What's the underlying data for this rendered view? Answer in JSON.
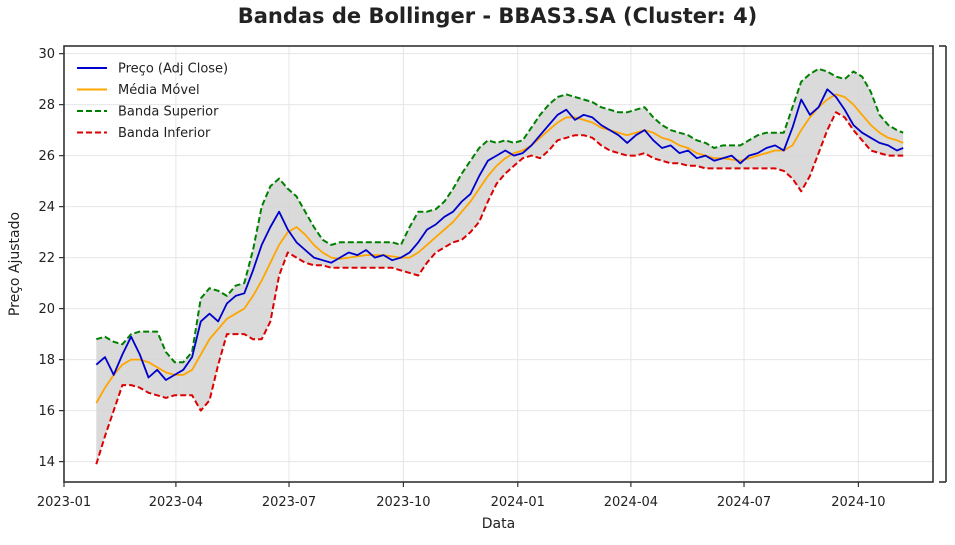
{
  "chart_data": {
    "type": "line",
    "title": "Bandas de Bollinger - BBAS3.SA (Cluster: 4)",
    "xlabel": "Data",
    "ylabel": "Preço Ajustado",
    "x_ticks": [
      "2023-01",
      "2023-04",
      "2023-07",
      "2023-10",
      "2024-01",
      "2024-04",
      "2024-07",
      "2024-10"
    ],
    "y_ticks": [
      14,
      16,
      18,
      20,
      22,
      24,
      26,
      28,
      30
    ],
    "xlim": [
      "2023-01-01",
      "2024-11-30"
    ],
    "ylim": [
      13.2,
      30.3
    ],
    "grid": true,
    "legend_position": "top-left",
    "fill_between": {
      "from": "Banda Inferior",
      "to": "Banda Superior",
      "color": "#d3d3d3"
    },
    "series": [
      {
        "name": "Preço (Adj Close)",
        "color": "#0000cc",
        "style": "solid",
        "x": [
          "2023-01-27",
          "2023-02-03",
          "2023-02-10",
          "2023-02-17",
          "2023-02-24",
          "2023-03-03",
          "2023-03-10",
          "2023-03-17",
          "2023-03-24",
          "2023-03-31",
          "2023-04-07",
          "2023-04-14",
          "2023-04-21",
          "2023-04-28",
          "2023-05-05",
          "2023-05-12",
          "2023-05-19",
          "2023-05-26",
          "2023-06-02",
          "2023-06-09",
          "2023-06-16",
          "2023-06-23",
          "2023-06-30",
          "2023-07-07",
          "2023-07-14",
          "2023-07-21",
          "2023-07-28",
          "2023-08-04",
          "2023-08-11",
          "2023-08-18",
          "2023-08-25",
          "2023-09-01",
          "2023-09-08",
          "2023-09-15",
          "2023-09-22",
          "2023-09-29",
          "2023-10-06",
          "2023-10-13",
          "2023-10-20",
          "2023-10-27",
          "2023-11-03",
          "2023-11-10",
          "2023-11-17",
          "2023-11-24",
          "2023-12-01",
          "2023-12-08",
          "2023-12-15",
          "2023-12-22",
          "2023-12-29",
          "2024-01-05",
          "2024-01-12",
          "2024-01-19",
          "2024-01-26",
          "2024-02-02",
          "2024-02-09",
          "2024-02-16",
          "2024-02-23",
          "2024-03-01",
          "2024-03-08",
          "2024-03-15",
          "2024-03-22",
          "2024-03-29",
          "2024-04-05",
          "2024-04-12",
          "2024-04-19",
          "2024-04-26",
          "2024-05-03",
          "2024-05-10",
          "2024-05-17",
          "2024-05-24",
          "2024-05-31",
          "2024-06-07",
          "2024-06-14",
          "2024-06-21",
          "2024-06-28",
          "2024-07-05",
          "2024-07-12",
          "2024-07-19",
          "2024-07-26",
          "2024-08-02",
          "2024-08-09",
          "2024-08-16",
          "2024-08-23",
          "2024-08-30",
          "2024-09-06",
          "2024-09-13",
          "2024-09-20",
          "2024-09-27",
          "2024-10-04",
          "2024-10-11",
          "2024-10-18",
          "2024-10-25",
          "2024-11-01",
          "2024-11-06"
        ],
        "values": [
          17.8,
          18.1,
          17.4,
          18.2,
          18.9,
          18.2,
          17.3,
          17.6,
          17.2,
          17.4,
          17.6,
          18.1,
          19.5,
          19.8,
          19.5,
          20.2,
          20.5,
          20.6,
          21.5,
          22.5,
          23.2,
          23.8,
          23.1,
          22.6,
          22.3,
          22.0,
          21.9,
          21.8,
          22.0,
          22.2,
          22.1,
          22.3,
          22.0,
          22.1,
          21.9,
          22.0,
          22.2,
          22.6,
          23.1,
          23.3,
          23.6,
          23.8,
          24.2,
          24.5,
          25.2,
          25.8,
          26.0,
          26.2,
          26.0,
          26.1,
          26.4,
          26.8,
          27.2,
          27.6,
          27.8,
          27.4,
          27.6,
          27.5,
          27.2,
          27.0,
          26.8,
          26.5,
          26.8,
          27.0,
          26.6,
          26.3,
          26.4,
          26.1,
          26.2,
          25.9,
          26.0,
          25.8,
          25.9,
          26.0,
          25.7,
          26.0,
          26.1,
          26.3,
          26.4,
          26.2,
          27.1,
          28.2,
          27.6,
          27.9,
          28.6,
          28.3,
          27.8,
          27.2,
          26.9,
          26.7,
          26.5,
          26.4,
          26.2,
          26.3
        ]
      },
      {
        "name": "Média Móvel",
        "color": "#ffa500",
        "style": "solid",
        "x": [
          "2023-01-27",
          "2023-02-03",
          "2023-02-10",
          "2023-02-17",
          "2023-02-24",
          "2023-03-03",
          "2023-03-10",
          "2023-03-17",
          "2023-03-24",
          "2023-03-31",
          "2023-04-07",
          "2023-04-14",
          "2023-04-21",
          "2023-04-28",
          "2023-05-05",
          "2023-05-12",
          "2023-05-19",
          "2023-05-26",
          "2023-06-02",
          "2023-06-09",
          "2023-06-16",
          "2023-06-23",
          "2023-06-30",
          "2023-07-07",
          "2023-07-14",
          "2023-07-21",
          "2023-07-28",
          "2023-08-04",
          "2023-08-11",
          "2023-08-18",
          "2023-08-25",
          "2023-09-01",
          "2023-09-08",
          "2023-09-15",
          "2023-09-22",
          "2023-09-29",
          "2023-10-06",
          "2023-10-13",
          "2023-10-20",
          "2023-10-27",
          "2023-11-03",
          "2023-11-10",
          "2023-11-17",
          "2023-11-24",
          "2023-12-01",
          "2023-12-08",
          "2023-12-15",
          "2023-12-22",
          "2023-12-29",
          "2024-01-05",
          "2024-01-12",
          "2024-01-19",
          "2024-01-26",
          "2024-02-02",
          "2024-02-09",
          "2024-02-16",
          "2024-02-23",
          "2024-03-01",
          "2024-03-08",
          "2024-03-15",
          "2024-03-22",
          "2024-03-29",
          "2024-04-05",
          "2024-04-12",
          "2024-04-19",
          "2024-04-26",
          "2024-05-03",
          "2024-05-10",
          "2024-05-17",
          "2024-05-24",
          "2024-05-31",
          "2024-06-07",
          "2024-06-14",
          "2024-06-21",
          "2024-06-28",
          "2024-07-05",
          "2024-07-12",
          "2024-07-19",
          "2024-07-26",
          "2024-08-02",
          "2024-08-09",
          "2024-08-16",
          "2024-08-23",
          "2024-08-30",
          "2024-09-06",
          "2024-09-13",
          "2024-09-20",
          "2024-09-27",
          "2024-10-04",
          "2024-10-11",
          "2024-10-18",
          "2024-10-25",
          "2024-11-01",
          "2024-11-06"
        ],
        "values": [
          16.3,
          16.9,
          17.4,
          17.8,
          18.0,
          18.0,
          17.9,
          17.7,
          17.5,
          17.4,
          17.4,
          17.6,
          18.2,
          18.8,
          19.2,
          19.6,
          19.8,
          20.0,
          20.5,
          21.1,
          21.8,
          22.5,
          23.0,
          23.2,
          22.9,
          22.5,
          22.2,
          22.0,
          21.95,
          22.0,
          22.05,
          22.1,
          22.1,
          22.1,
          22.05,
          22.0,
          22.0,
          22.2,
          22.5,
          22.8,
          23.1,
          23.4,
          23.8,
          24.2,
          24.7,
          25.2,
          25.6,
          25.9,
          26.1,
          26.2,
          26.4,
          26.7,
          27.0,
          27.3,
          27.5,
          27.5,
          27.4,
          27.3,
          27.1,
          27.0,
          26.9,
          26.8,
          26.9,
          27.0,
          26.9,
          26.7,
          26.6,
          26.4,
          26.3,
          26.1,
          26.0,
          25.9,
          25.9,
          25.85,
          25.8,
          25.9,
          26.0,
          26.1,
          26.2,
          26.2,
          26.4,
          27.0,
          27.5,
          27.9,
          28.2,
          28.4,
          28.3,
          28.0,
          27.6,
          27.2,
          26.9,
          26.7,
          26.6,
          26.5
        ]
      },
      {
        "name": "Banda Superior",
        "color": "#008000",
        "style": "dashed",
        "x": [
          "2023-01-27",
          "2023-02-03",
          "2023-02-10",
          "2023-02-17",
          "2023-02-24",
          "2023-03-03",
          "2023-03-10",
          "2023-03-17",
          "2023-03-24",
          "2023-03-31",
          "2023-04-07",
          "2023-04-14",
          "2023-04-21",
          "2023-04-28",
          "2023-05-05",
          "2023-05-12",
          "2023-05-19",
          "2023-05-26",
          "2023-06-02",
          "2023-06-09",
          "2023-06-16",
          "2023-06-23",
          "2023-06-30",
          "2023-07-07",
          "2023-07-14",
          "2023-07-21",
          "2023-07-28",
          "2023-08-04",
          "2023-08-11",
          "2023-08-18",
          "2023-08-25",
          "2023-09-01",
          "2023-09-08",
          "2023-09-15",
          "2023-09-22",
          "2023-09-29",
          "2023-10-06",
          "2023-10-13",
          "2023-10-20",
          "2023-10-27",
          "2023-11-03",
          "2023-11-10",
          "2023-11-17",
          "2023-11-24",
          "2023-12-01",
          "2023-12-08",
          "2023-12-15",
          "2023-12-22",
          "2023-12-29",
          "2024-01-05",
          "2024-01-12",
          "2024-01-19",
          "2024-01-26",
          "2024-02-02",
          "2024-02-09",
          "2024-02-16",
          "2024-02-23",
          "2024-03-01",
          "2024-03-08",
          "2024-03-15",
          "2024-03-22",
          "2024-03-29",
          "2024-04-05",
          "2024-04-12",
          "2024-04-19",
          "2024-04-26",
          "2024-05-03",
          "2024-05-10",
          "2024-05-17",
          "2024-05-24",
          "2024-05-31",
          "2024-06-07",
          "2024-06-14",
          "2024-06-21",
          "2024-06-28",
          "2024-07-05",
          "2024-07-12",
          "2024-07-19",
          "2024-07-26",
          "2024-08-02",
          "2024-08-09",
          "2024-08-16",
          "2024-08-23",
          "2024-08-30",
          "2024-09-06",
          "2024-09-13",
          "2024-09-20",
          "2024-09-27",
          "2024-10-04",
          "2024-10-11",
          "2024-10-18",
          "2024-10-25",
          "2024-11-01",
          "2024-11-06"
        ],
        "values": [
          18.8,
          18.9,
          18.7,
          18.6,
          19.0,
          19.1,
          19.1,
          19.1,
          18.3,
          17.9,
          17.9,
          18.3,
          20.4,
          20.8,
          20.7,
          20.5,
          20.9,
          21.0,
          22.3,
          24.0,
          24.8,
          25.1,
          24.7,
          24.4,
          23.8,
          23.2,
          22.7,
          22.5,
          22.6,
          22.6,
          22.6,
          22.6,
          22.6,
          22.6,
          22.6,
          22.5,
          23.2,
          23.8,
          23.8,
          23.9,
          24.2,
          24.7,
          25.3,
          25.8,
          26.3,
          26.6,
          26.5,
          26.6,
          26.5,
          26.6,
          27.1,
          27.6,
          28.0,
          28.3,
          28.4,
          28.3,
          28.2,
          28.1,
          27.9,
          27.8,
          27.7,
          27.7,
          27.8,
          27.9,
          27.5,
          27.2,
          27.0,
          26.9,
          26.8,
          26.6,
          26.5,
          26.3,
          26.4,
          26.4,
          26.4,
          26.6,
          26.8,
          26.9,
          26.9,
          26.9,
          27.9,
          28.9,
          29.2,
          29.4,
          29.3,
          29.1,
          29.0,
          29.3,
          29.1,
          28.5,
          27.6,
          27.2,
          27.0,
          26.9
        ]
      },
      {
        "name": "Banda Inferior",
        "color": "#dd0000",
        "style": "dashed",
        "x": [
          "2023-01-27",
          "2023-02-03",
          "2023-02-10",
          "2023-02-17",
          "2023-02-24",
          "2023-03-03",
          "2023-03-10",
          "2023-03-17",
          "2023-03-24",
          "2023-03-31",
          "2023-04-07",
          "2023-04-14",
          "2023-04-21",
          "2023-04-28",
          "2023-05-05",
          "2023-05-12",
          "2023-05-19",
          "2023-05-26",
          "2023-06-02",
          "2023-06-09",
          "2023-06-16",
          "2023-06-23",
          "2023-06-30",
          "2023-07-07",
          "2023-07-14",
          "2023-07-21",
          "2023-07-28",
          "2023-08-04",
          "2023-08-11",
          "2023-08-18",
          "2023-08-25",
          "2023-09-01",
          "2023-09-08",
          "2023-09-15",
          "2023-09-22",
          "2023-09-29",
          "2023-10-06",
          "2023-10-13",
          "2023-10-20",
          "2023-10-27",
          "2023-11-03",
          "2023-11-10",
          "2023-11-17",
          "2023-11-24",
          "2023-12-01",
          "2023-12-08",
          "2023-12-15",
          "2023-12-22",
          "2023-12-29",
          "2024-01-05",
          "2024-01-12",
          "2024-01-19",
          "2024-01-26",
          "2024-02-02",
          "2024-02-09",
          "2024-02-16",
          "2024-02-23",
          "2024-03-01",
          "2024-03-08",
          "2024-03-15",
          "2024-03-22",
          "2024-03-29",
          "2024-04-05",
          "2024-04-12",
          "2024-04-19",
          "2024-04-26",
          "2024-05-03",
          "2024-05-10",
          "2024-05-17",
          "2024-05-24",
          "2024-05-31",
          "2024-06-07",
          "2024-06-14",
          "2024-06-21",
          "2024-06-28",
          "2024-07-05",
          "2024-07-12",
          "2024-07-19",
          "2024-07-26",
          "2024-08-02",
          "2024-08-09",
          "2024-08-16",
          "2024-08-23",
          "2024-08-30",
          "2024-09-06",
          "2024-09-13",
          "2024-09-20",
          "2024-09-27",
          "2024-10-04",
          "2024-10-11",
          "2024-10-18",
          "2024-10-25",
          "2024-11-01",
          "2024-11-06"
        ],
        "values": [
          13.9,
          15.0,
          16.0,
          17.0,
          17.0,
          16.9,
          16.7,
          16.6,
          16.5,
          16.6,
          16.6,
          16.6,
          16.0,
          16.4,
          17.8,
          19.0,
          19.0,
          19.0,
          18.8,
          18.8,
          19.5,
          21.3,
          22.2,
          22.0,
          21.8,
          21.7,
          21.7,
          21.6,
          21.6,
          21.6,
          21.6,
          21.6,
          21.6,
          21.6,
          21.6,
          21.5,
          21.4,
          21.3,
          21.8,
          22.2,
          22.4,
          22.6,
          22.7,
          23.0,
          23.4,
          24.2,
          24.9,
          25.3,
          25.6,
          25.9,
          26.0,
          25.9,
          26.2,
          26.6,
          26.7,
          26.8,
          26.8,
          26.7,
          26.4,
          26.2,
          26.1,
          26.0,
          26.0,
          26.1,
          25.9,
          25.8,
          25.7,
          25.7,
          25.6,
          25.6,
          25.5,
          25.5,
          25.5,
          25.5,
          25.5,
          25.5,
          25.5,
          25.5,
          25.5,
          25.4,
          25.1,
          24.6,
          25.2,
          26.1,
          27.0,
          27.7,
          27.5,
          27.0,
          26.6,
          26.2,
          26.1,
          26.0,
          26.0,
          26.0
        ]
      }
    ]
  }
}
